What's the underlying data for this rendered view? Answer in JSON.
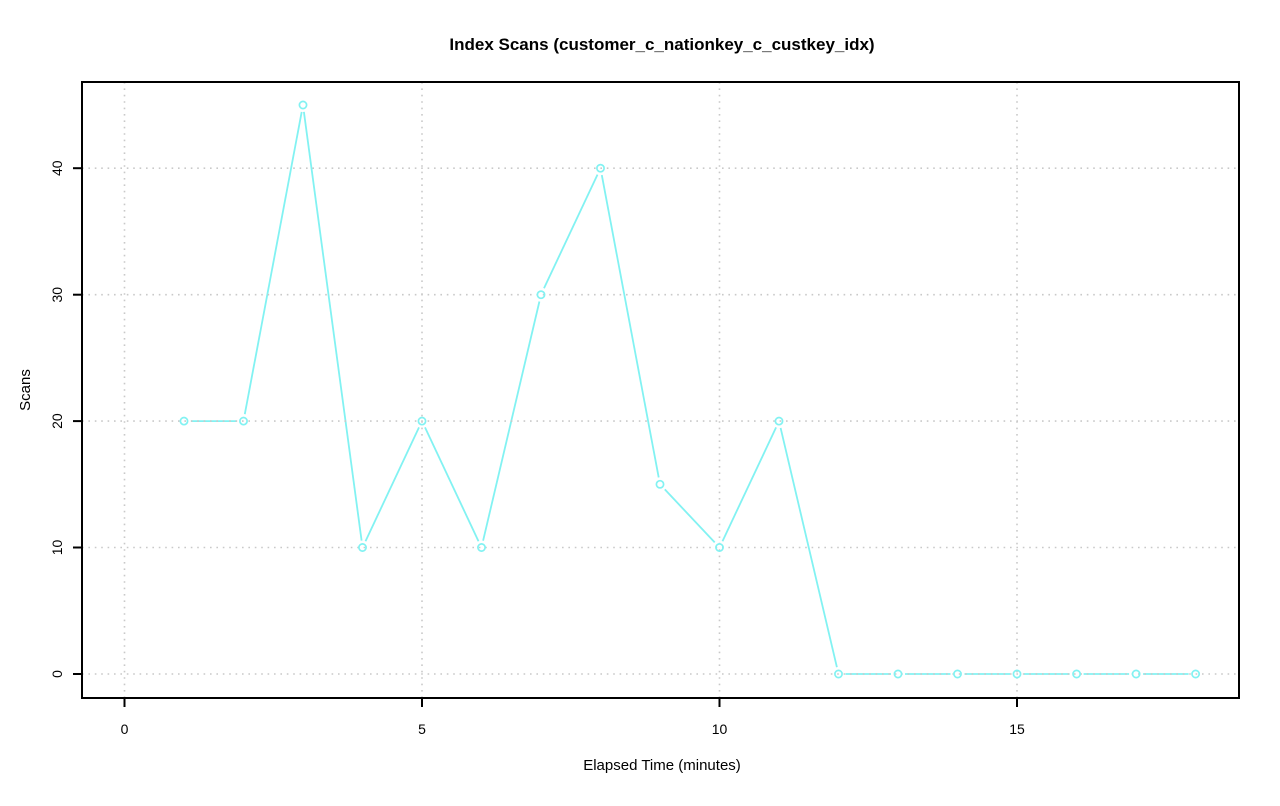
{
  "figure": {
    "background": "#ffffff"
  },
  "chart_data": {
    "type": "line",
    "title": "Index Scans (customer_c_nationkey_c_custkey_idx)",
    "xlabel": "Elapsed Time (minutes)",
    "ylabel": "Scans",
    "series": [
      {
        "name": "Scans",
        "x": [
          1,
          2,
          3,
          4,
          5,
          6,
          7,
          8,
          9,
          10,
          11,
          12,
          13,
          14,
          15,
          16,
          17,
          18
        ],
        "values": [
          20,
          20,
          45,
          10,
          20,
          10,
          30,
          40,
          15,
          10,
          20,
          0,
          0,
          0,
          0,
          0,
          0,
          0
        ]
      }
    ],
    "x_ticks": [
      0,
      5,
      10,
      15
    ],
    "y_ticks": [
      0,
      10,
      20,
      30,
      40
    ],
    "xlim": [
      -0.714,
      18.73
    ],
    "ylim": [
      -1.9,
      46.82
    ],
    "grid": true,
    "grid_style": "dotted",
    "legend_position": "none",
    "marker": "open-circle",
    "colors": {
      "line": "#82F2F2",
      "marker": "#82F2F2",
      "grid": "#C9C9C9",
      "axis": "#000000",
      "text": "#000000"
    }
  }
}
